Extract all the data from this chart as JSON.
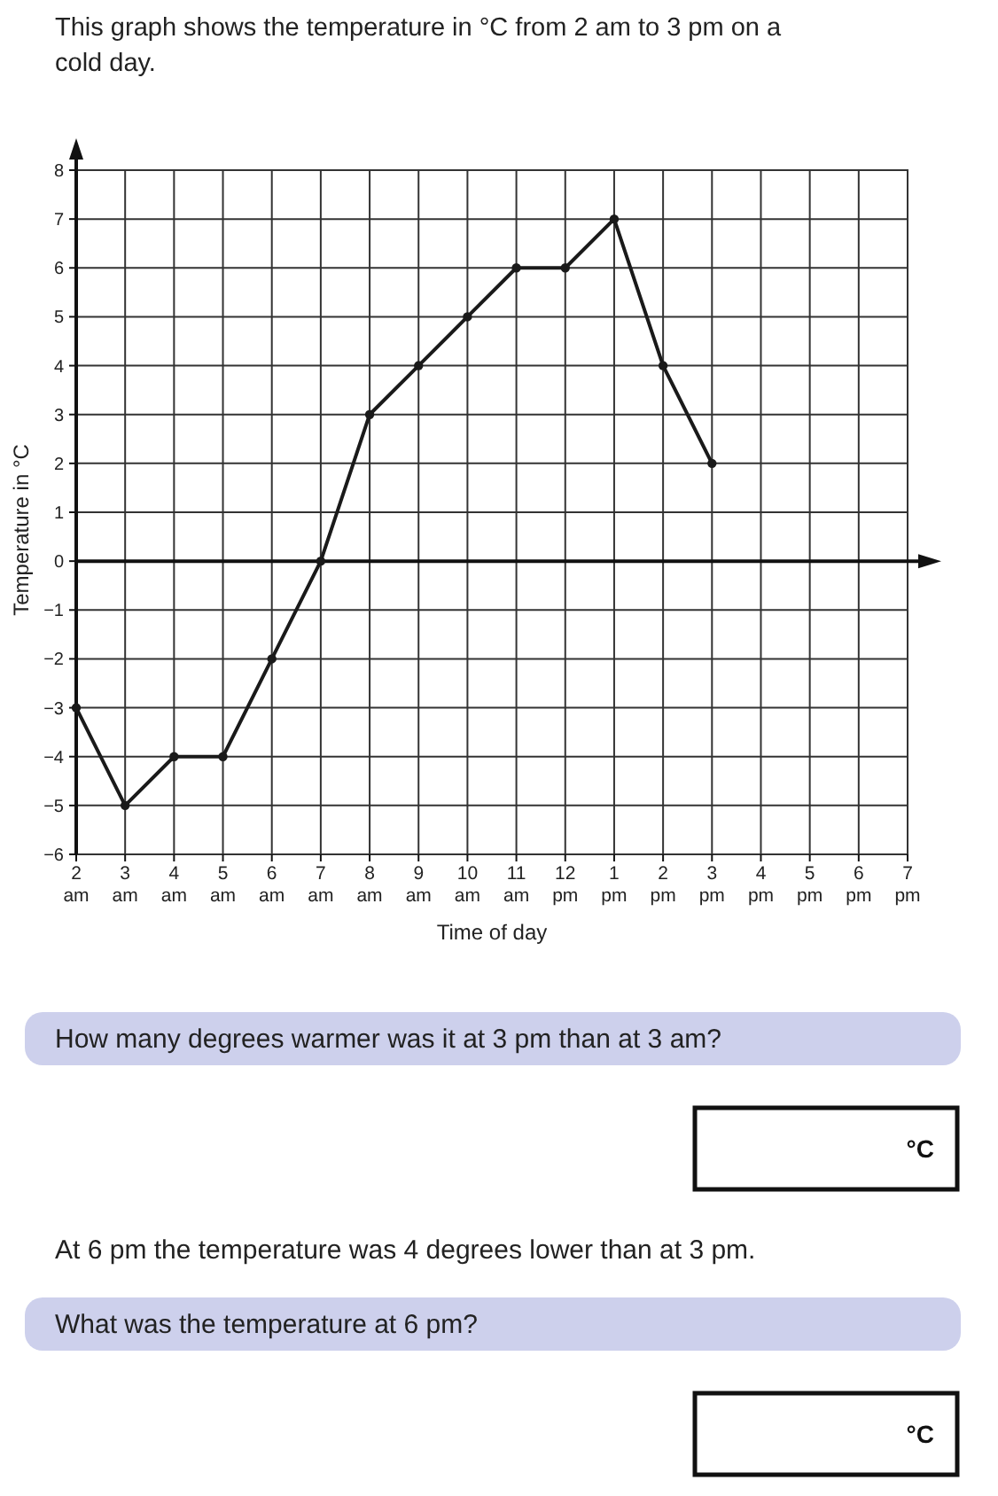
{
  "chart_data": {
    "type": "line",
    "title": "This graph shows the temperature in °C from 2 am to 3 pm on a cold day.",
    "xlabel": "Time of day",
    "ylabel": "Temperature in °C",
    "categories": [
      "2\nam",
      "3\nam",
      "4\nam",
      "5\nam",
      "6\nam",
      "7\nam",
      "8\nam",
      "9\nam",
      "10\nam",
      "11\nam",
      "12\npm",
      "1\npm",
      "2\npm",
      "3\npm",
      "4\npm",
      "5\npm",
      "6\npm",
      "7\npm"
    ],
    "series": [
      {
        "color": "#1a1a1a",
        "values": [
          -3,
          -5,
          -4,
          -4,
          -2,
          0,
          3,
          4,
          5,
          6,
          6,
          7,
          4,
          2,
          null,
          null,
          null,
          null
        ]
      }
    ],
    "ylim": [
      -6,
      8
    ],
    "yticks": [
      {
        "value": -6,
        "label": "−6"
      },
      {
        "value": -5,
        "label": "−5"
      },
      {
        "value": -4,
        "label": "−4"
      },
      {
        "value": -3,
        "label": "−3"
      },
      {
        "value": -2,
        "label": "−2"
      },
      {
        "value": -1,
        "label": "−1"
      },
      0,
      1,
      2,
      3,
      4,
      5,
      6,
      7,
      8
    ],
    "grid": true,
    "marker": "circle",
    "line_style": "solid",
    "annotations": [
      "How many degrees warmer was it at 3 pm than at 3 am?",
      "°C",
      "At 6 pm the temperature was 4 degrees lower than at 3 pm.",
      "What was the temperature at 6 pm?",
      "°C"
    ]
  }
}
